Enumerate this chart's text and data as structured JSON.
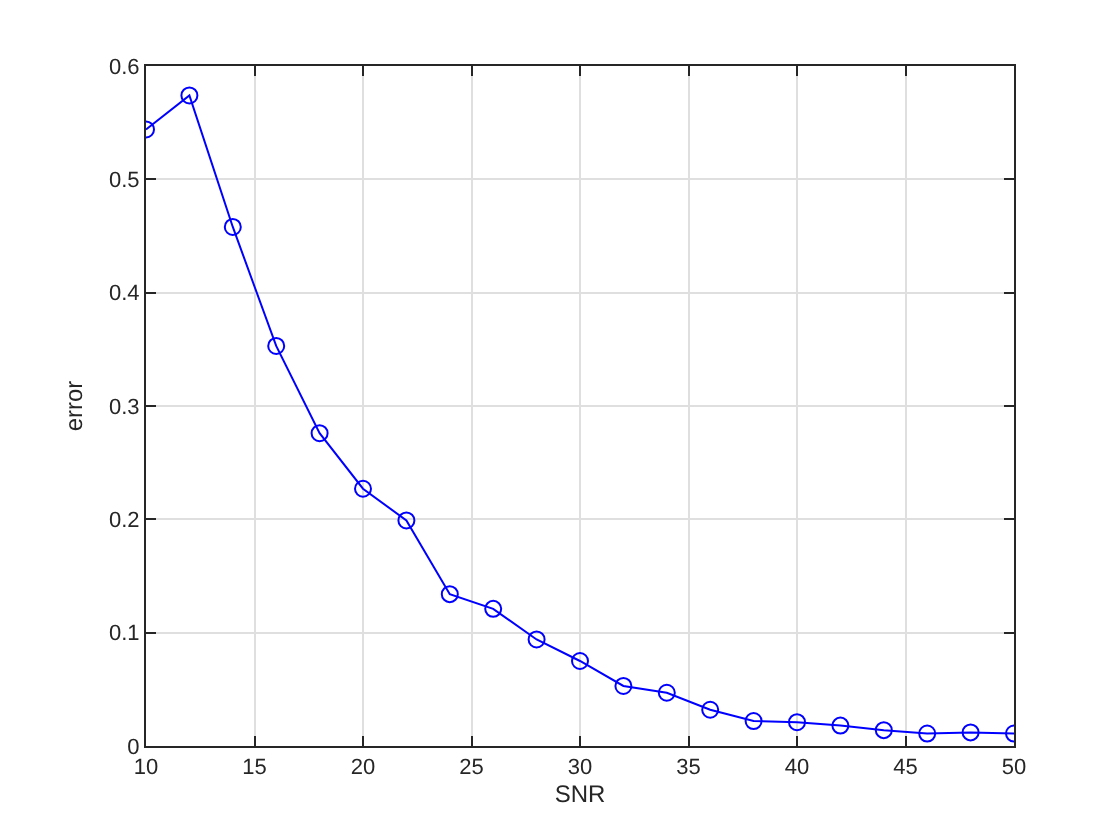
{
  "chart_data": {
    "type": "line",
    "xlabel": "SNR",
    "ylabel": "error",
    "x": [
      10,
      12,
      14,
      16,
      18,
      20,
      22,
      24,
      26,
      28,
      30,
      32,
      34,
      36,
      38,
      40,
      42,
      44,
      46,
      48,
      50
    ],
    "series": [
      {
        "color": "#0000ff",
        "values": [
          0.544,
          0.574,
          0.458,
          0.353,
          0.276,
          0.227,
          0.199,
          0.134,
          0.121,
          0.094,
          0.075,
          0.053,
          0.047,
          0.032,
          0.022,
          0.021,
          0.018,
          0.014,
          0.011,
          0.012,
          0.011
        ]
      }
    ],
    "xlim": [
      10,
      50
    ],
    "ylim": [
      0,
      0.6
    ],
    "xticks": [
      10,
      15,
      20,
      25,
      30,
      35,
      40,
      45,
      50
    ],
    "yticks": [
      0,
      0.1,
      0.2,
      0.3,
      0.4,
      0.5,
      0.6
    ],
    "grid": true,
    "marker": "circle",
    "line_style": "solid"
  }
}
